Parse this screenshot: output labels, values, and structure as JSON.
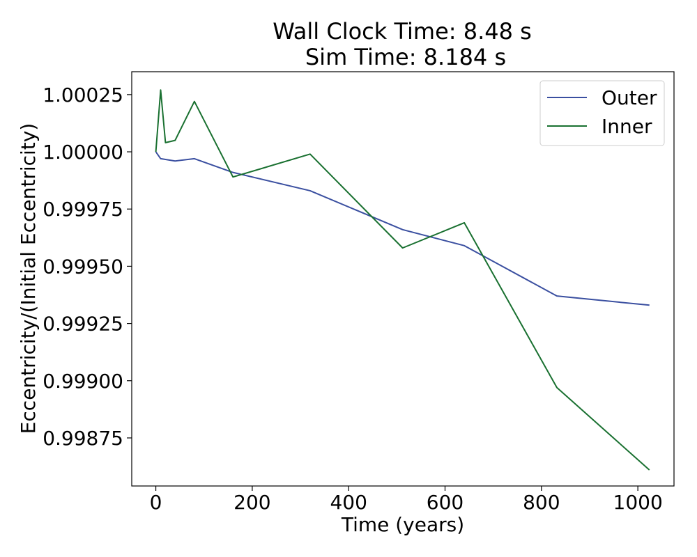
{
  "chart_data": {
    "type": "line",
    "title_lines": [
      "Wall Clock Time: 8.48 s",
      "Sim Time: 8.184 s"
    ],
    "xlabel": "Time (years)",
    "ylabel": "Eccentricity/(Initial Eccentricity)",
    "xlim": [
      -50,
      1075
    ],
    "ylim": [
      0.99854,
      1.00035
    ],
    "xticks": [
      0,
      200,
      400,
      600,
      800,
      1000
    ],
    "xtick_labels": [
      "0",
      "200",
      "400",
      "600",
      "800",
      "1000"
    ],
    "yticks": [
      0.99875,
      0.999,
      0.99925,
      0.9995,
      0.99975,
      1.0,
      1.00025
    ],
    "ytick_labels": [
      "0.99875",
      "0.99900",
      "0.99925",
      "0.99950",
      "0.99975",
      "1.00000",
      "1.00025"
    ],
    "grid": false,
    "legend": {
      "position": "top-right"
    },
    "series": [
      {
        "name": "Outer",
        "color": "#3a4fa0",
        "x": [
          0,
          10,
          40,
          80,
          160,
          320,
          512,
          640,
          832,
          1024
        ],
        "y": [
          1.0,
          0.99997,
          0.99996,
          0.99997,
          0.99991,
          0.99983,
          0.99966,
          0.99959,
          0.99937,
          0.99933
        ]
      },
      {
        "name": "Inner",
        "color": "#197030",
        "x": [
          0,
          10,
          20,
          40,
          80,
          160,
          320,
          512,
          640,
          832,
          1024
        ],
        "y": [
          1.0,
          1.00027,
          1.00004,
          1.00005,
          1.00022,
          0.99989,
          0.99999,
          0.99958,
          0.99969,
          0.99897,
          0.99861
        ]
      }
    ]
  }
}
